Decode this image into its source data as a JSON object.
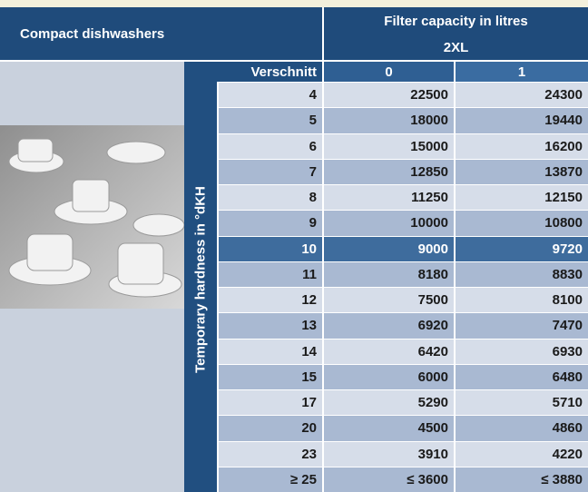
{
  "header": {
    "title": "Compact dishwashers",
    "capacity": "Filter capacity in litres",
    "model": "2XL"
  },
  "table": {
    "verschnitt_label": "Verschnitt",
    "columns": [
      "0",
      "1"
    ],
    "row_label": "Temporary hardness in °dKH",
    "highlight_row": 6,
    "rows": [
      [
        "4",
        "22500",
        "24300"
      ],
      [
        "5",
        "18000",
        "19440"
      ],
      [
        "6",
        "15000",
        "16200"
      ],
      [
        "7",
        "12850",
        "13870"
      ],
      [
        "8",
        "11250",
        "12150"
      ],
      [
        "9",
        "10000",
        "10800"
      ],
      [
        "10",
        "9000",
        "9720"
      ],
      [
        "11",
        "8180",
        "8830"
      ],
      [
        "12",
        "7500",
        "8100"
      ],
      [
        "13",
        "6920",
        "7470"
      ],
      [
        "14",
        "6420",
        "6930"
      ],
      [
        "15",
        "6000",
        "6480"
      ],
      [
        "17",
        "5290",
        "5710"
      ],
      [
        "20",
        "4500",
        "4860"
      ],
      [
        "23",
        "3910",
        "4220"
      ],
      [
        "≥ 25",
        "≤ 3600",
        "≤ 3880"
      ]
    ]
  }
}
